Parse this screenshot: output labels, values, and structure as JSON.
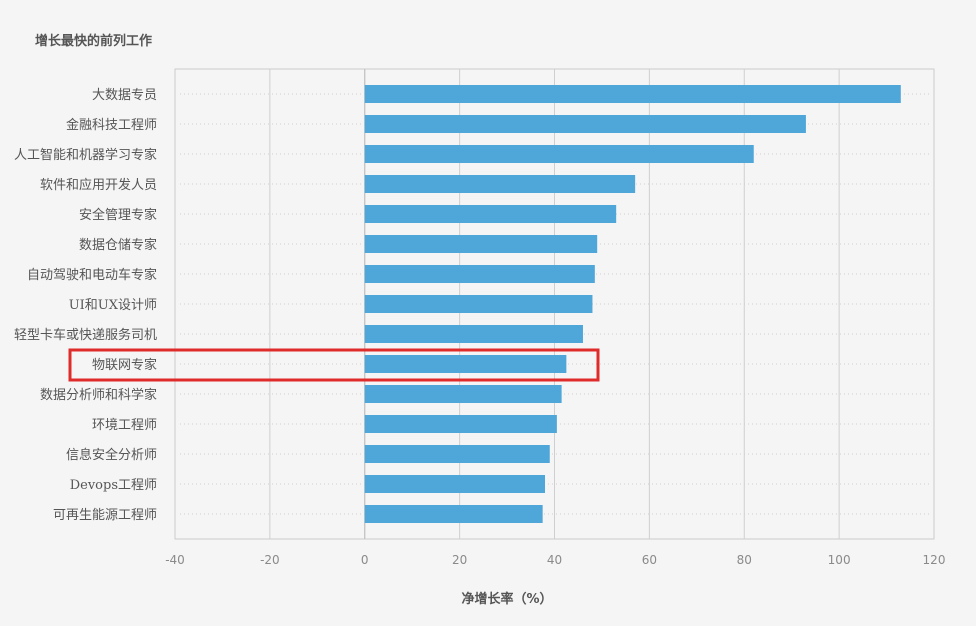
{
  "chart_data": {
    "type": "bar",
    "orientation": "horizontal",
    "title": "增长最快的前列工作",
    "xlabel": "净增长率（%）",
    "ylabel": "",
    "xlim": [
      -40,
      120
    ],
    "xticks": [
      "-40",
      "-20",
      "0",
      "20",
      "40",
      "60",
      "80",
      "100",
      "120"
    ],
    "categories": [
      "大数据专员",
      "金融科技工程师",
      "人工智能和机器学习专家",
      "软件和应用开发人员",
      "安全管理专家",
      "数据仓储专家",
      "自动驾驶和电动车专家",
      "UI和UX设计师",
      "轻型卡车或快递服务司机",
      "物联网专家",
      "数据分析师和科学家",
      "环境工程师",
      "信息安全分析师",
      "Devops工程师",
      "可再生能源工程师"
    ],
    "values": [
      113,
      93,
      82,
      57,
      53,
      49,
      48.5,
      48,
      46,
      42.5,
      41.5,
      40.5,
      39,
      38,
      37.5
    ],
    "grid": true,
    "highlighted_category": "物联网专家",
    "bar_color": "#4fa6d9",
    "highlight_color": "#e02b2b"
  }
}
